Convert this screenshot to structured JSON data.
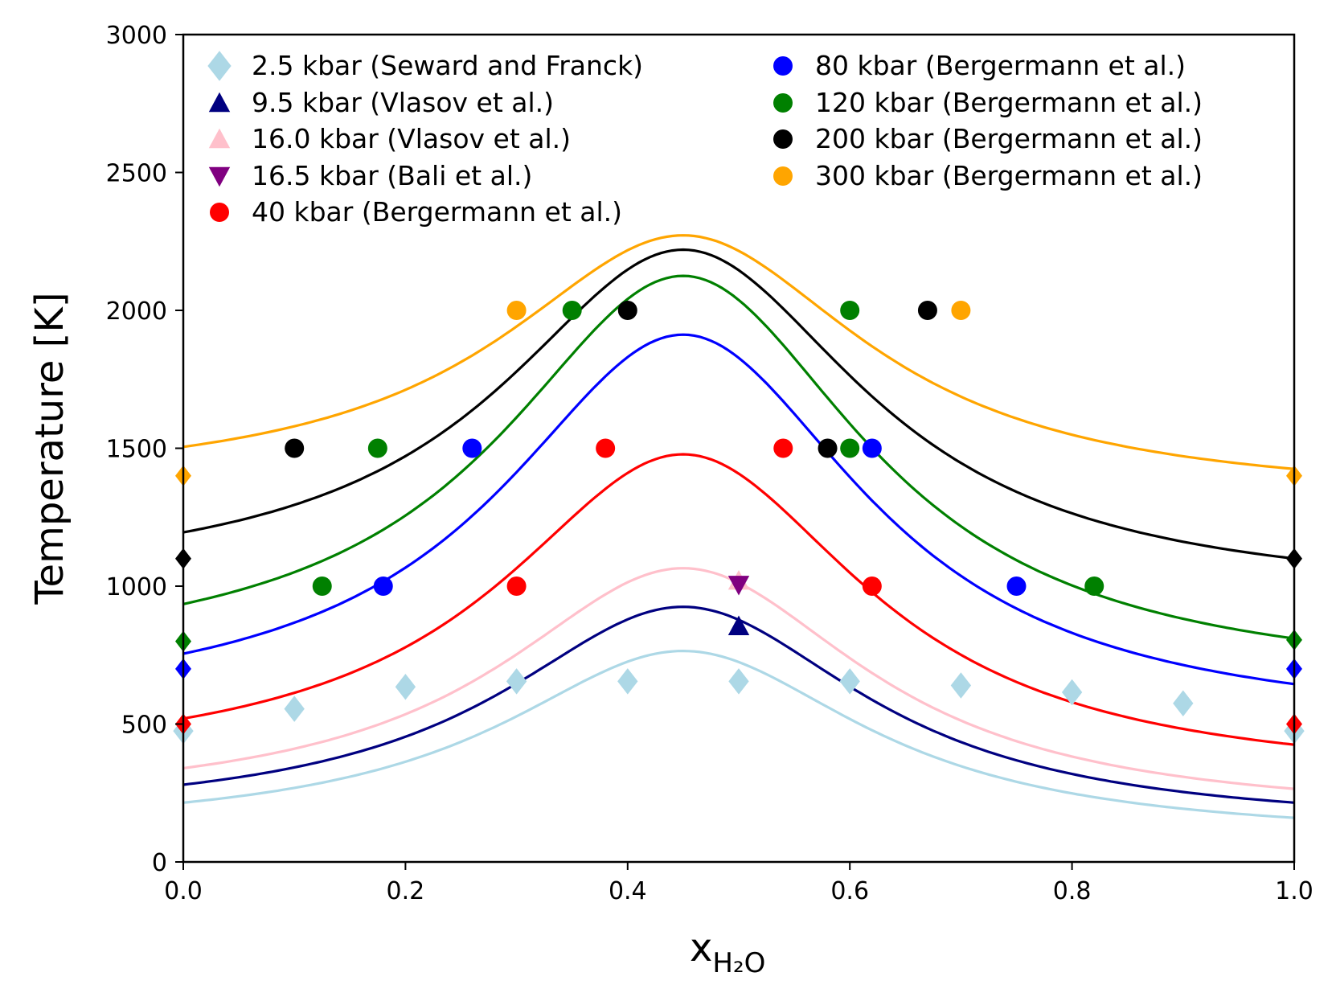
{
  "chart_data": {
    "type": "scatter",
    "title": "",
    "xlabel": "x",
    "xlabel_subscript": "H₂O",
    "ylabel": "Temperature [K]",
    "xlim": [
      0.0,
      1.0
    ],
    "ylim": [
      0,
      3000
    ],
    "x_ticks": [
      0.0,
      0.2,
      0.4,
      0.6,
      0.8,
      1.0
    ],
    "x_tick_labels": [
      "0.0",
      "0.2",
      "0.4",
      "0.6",
      "0.8",
      "1.0"
    ],
    "y_ticks": [
      0,
      500,
      1000,
      1500,
      2000,
      2500,
      3000
    ],
    "y_tick_labels": [
      "0",
      "500",
      "1000",
      "1500",
      "2000",
      "2500",
      "3000"
    ],
    "grid": false,
    "legend_placement": "top, two columns",
    "series": [
      {
        "name": "2.5 kbar (Seward and Franck)",
        "color": "#add8e6",
        "marker": "diamond",
        "points": [
          [
            0.0,
            475
          ],
          [
            0.1,
            555
          ],
          [
            0.2,
            635
          ],
          [
            0.3,
            655
          ],
          [
            0.4,
            655
          ],
          [
            0.5,
            655
          ],
          [
            0.6,
            655
          ],
          [
            0.7,
            640
          ],
          [
            0.8,
            615
          ],
          [
            0.9,
            575
          ],
          [
            1.0,
            475
          ]
        ],
        "curve": {
          "start": 215,
          "peak_x": 0.45,
          "peak": 765,
          "end": 160
        }
      },
      {
        "name": "9.5 kbar (Vlasov et al.)",
        "color": "#000080",
        "marker": "triangle-up",
        "points": [
          [
            0.5,
            855
          ]
        ],
        "curve": {
          "start": 280,
          "peak_x": 0.45,
          "peak": 925,
          "end": 215
        }
      },
      {
        "name": "16.0 kbar (Vlasov et al.)",
        "color": "#ffc0cb",
        "marker": "triangle-up",
        "points": [
          [
            0.5,
            1020
          ]
        ],
        "curve": {
          "start": 340,
          "peak_x": 0.45,
          "peak": 1065,
          "end": 265
        }
      },
      {
        "name": "16.5 kbar (Bali et al.)",
        "color": "#800080",
        "marker": "triangle-down",
        "points": [
          [
            0.5,
            1005
          ]
        ],
        "curve": null
      },
      {
        "name": "40 kbar (Bergermann et al.)",
        "color": "#ff0000",
        "marker": "circle",
        "points": [
          [
            0.3,
            1000
          ],
          [
            0.38,
            1500
          ],
          [
            0.54,
            1500
          ],
          [
            0.62,
            1000
          ]
        ],
        "end_points": [
          [
            0.0,
            500
          ],
          [
            1.0,
            500
          ]
        ],
        "curve": {
          "start": 520,
          "peak_x": 0.45,
          "peak": 1478,
          "end": 425
        }
      },
      {
        "name": "80 kbar (Bergermann et al.)",
        "color": "#0000ff",
        "marker": "circle",
        "points": [
          [
            0.18,
            1000
          ],
          [
            0.26,
            1500
          ],
          [
            0.62,
            1500
          ],
          [
            0.75,
            1000
          ]
        ],
        "end_points": [
          [
            0.0,
            700
          ],
          [
            1.0,
            700
          ]
        ],
        "curve": {
          "start": 755,
          "peak_x": 0.45,
          "peak": 1912,
          "end": 645
        }
      },
      {
        "name": "120 kbar (Bergermann et al.)",
        "color": "#008000",
        "marker": "circle",
        "points": [
          [
            0.125,
            1000
          ],
          [
            0.175,
            1500
          ],
          [
            0.35,
            2000
          ],
          [
            0.6,
            2000
          ],
          [
            0.6,
            1500
          ],
          [
            0.82,
            1000
          ]
        ],
        "end_points": [
          [
            0.0,
            800
          ],
          [
            1.0,
            805
          ]
        ],
        "curve": {
          "start": 935,
          "peak_x": 0.45,
          "peak": 2125,
          "end": 810
        }
      },
      {
        "name": "200 kbar (Bergermann et al.)",
        "color": "#000000",
        "marker": "circle",
        "points": [
          [
            0.1,
            1500
          ],
          [
            0.4,
            2000
          ],
          [
            0.58,
            1500
          ],
          [
            0.67,
            2000
          ]
        ],
        "end_points": [
          [
            0.0,
            1100
          ],
          [
            1.0,
            1100
          ]
        ],
        "curve": {
          "start": 1195,
          "peak_x": 0.45,
          "peak": 2220,
          "end": 1100
        }
      },
      {
        "name": "300 kbar (Bergermann et al.)",
        "color": "#ffa500",
        "marker": "circle",
        "points": [
          [
            0.3,
            2000
          ],
          [
            0.7,
            2000
          ]
        ],
        "end_points": [
          [
            0.0,
            1400
          ],
          [
            1.0,
            1400
          ]
        ],
        "curve": {
          "start": 1505,
          "peak_x": 0.45,
          "peak": 2272,
          "end": 1425
        }
      }
    ]
  }
}
